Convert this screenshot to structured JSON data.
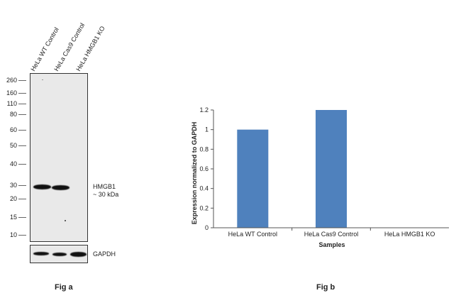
{
  "fig_a": {
    "lanes": [
      "HeLa WT Control",
      "HeLa Cas9 Control",
      "HeLa HMGB1 KO"
    ],
    "mw_markers": [
      "260",
      "160",
      "110",
      "80",
      "60",
      "50",
      "40",
      "30",
      "20",
      "15",
      "10"
    ],
    "band_label_line1": "HMGB1",
    "band_label_line2": "~ 30 kDa",
    "loading_label": "GAPDH",
    "caption": "Fig a"
  },
  "fig_b": {
    "caption": "Fig b"
  },
  "chart_data": {
    "type": "bar",
    "categories": [
      "HeLa WT Control",
      "HeLa Cas9 Control",
      "HeLa HMGB1 KO"
    ],
    "values": [
      1.0,
      1.2,
      0
    ],
    "xlabel": "Samples",
    "ylabel": "Expression  normalized to GAPDH",
    "ylim": [
      0,
      1.2
    ],
    "yticks": [
      "0",
      "0.2",
      "0.4",
      "0.6",
      "0.8",
      "1",
      "1.2"
    ],
    "grid": false,
    "bar_color": "#4f81bd"
  }
}
